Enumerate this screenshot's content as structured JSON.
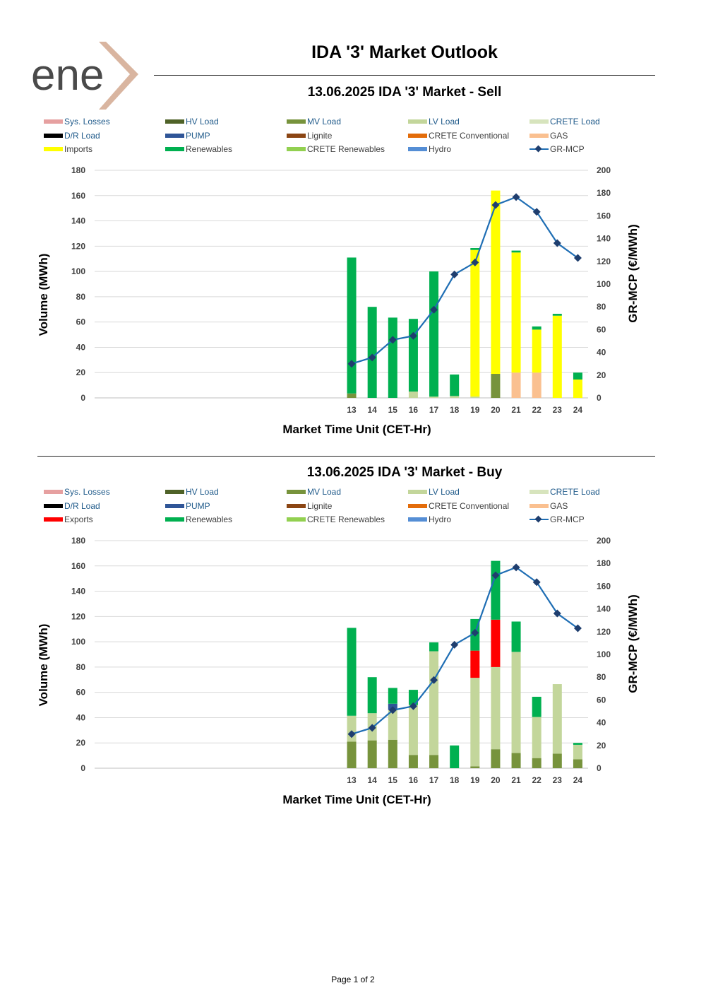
{
  "logo": {
    "text": "ene"
  },
  "header": {
    "title": "IDA '3' Market Outlook"
  },
  "footer": {
    "page": "Page 1 of 2"
  },
  "colors": {
    "sys_losses": "#e6a0a0",
    "hv_load": "#4f6228",
    "mv_load": "#77933c",
    "lv_load": "#c3d69b",
    "crete_load": "#d7e4bd",
    "dr_load": "#000000",
    "pump": "#2f5597",
    "lignite": "#8b4513",
    "crete_conventional": "#e36c0a",
    "gas": "#fac090",
    "imports": "#ffff00",
    "exports": "#ff0000",
    "renewables": "#00b050",
    "crete_renewables": "#92d050",
    "hydro": "#558ed5",
    "gr_mcp_line": "#1f6eb4",
    "gr_mcp_marker": "#1f3e6e"
  },
  "chart_data": [
    {
      "type": "bar",
      "title": "13.06.2025  IDA '3' Market - Sell",
      "xlabel": "Market Time Unit (CET-Hr)",
      "ylabel": "Volume (MWh)",
      "y2label": "GR-MCP (€/MWh)",
      "ylim": [
        0,
        180
      ],
      "y2lim": [
        0,
        200
      ],
      "yticks": [
        "180",
        "160",
        "140",
        "120",
        "100",
        "80",
        "60",
        "40",
        "20",
        "0"
      ],
      "y2ticks": [
        "200",
        "180",
        "160",
        "140",
        "120",
        "100",
        "80",
        "60",
        "40",
        "20",
        "0"
      ],
      "categories": [
        "13",
        "14",
        "15",
        "16",
        "17",
        "18",
        "19",
        "20",
        "21",
        "22",
        "23",
        "24"
      ],
      "stacked": true,
      "legend": [
        "Sys. Losses",
        "HV Load",
        "MV Load",
        "LV Load",
        "CRETE Load",
        "D/R Load",
        "PUMP",
        "Lignite",
        "CRETE Conventional",
        "GAS",
        "Imports",
        "Renewables",
        "CRETE Renewables",
        "Hydro",
        "GR-MCP"
      ],
      "series": [
        {
          "name": "MV Load",
          "key": "mv_load",
          "values": [
            3.5,
            0,
            0,
            0,
            0,
            0,
            0,
            19,
            0,
            0,
            0,
            0
          ]
        },
        {
          "name": "LV Load",
          "key": "lv_load",
          "values": [
            0,
            0,
            0,
            5,
            1,
            1.5,
            1,
            0,
            0,
            0,
            0,
            0
          ]
        },
        {
          "name": "GAS",
          "key": "gas",
          "values": [
            0,
            0,
            0,
            0,
            0,
            0,
            0,
            0,
            20,
            20,
            0,
            0
          ]
        },
        {
          "name": "Imports",
          "key": "imports",
          "values": [
            0,
            0,
            0,
            0,
            0,
            0,
            116,
            145,
            95,
            34,
            65,
            14.5
          ]
        },
        {
          "name": "Renewables",
          "key": "renewables",
          "values": [
            107.5,
            72,
            63.5,
            57.5,
            99,
            17,
            1.5,
            0,
            1.5,
            2.5,
            1.5,
            5.5
          ]
        }
      ],
      "line": {
        "name": "GR-MCP",
        "axis": "y2",
        "values": [
          30,
          35.5,
          51,
          54.5,
          77.5,
          108.5,
          119,
          169.5,
          176.5,
          163.5,
          136,
          123
        ]
      }
    },
    {
      "type": "bar",
      "title": "13.06.2025  IDA '3' Market - Buy",
      "xlabel": "Market Time Unit (CET-Hr)",
      "ylabel": "Volume (MWh)",
      "y2label": "GR-MCP (€/MWh)",
      "ylim": [
        0,
        180
      ],
      "y2lim": [
        0,
        200
      ],
      "yticks": [
        "180",
        "160",
        "140",
        "120",
        "100",
        "80",
        "60",
        "40",
        "20",
        "0"
      ],
      "y2ticks": [
        "200",
        "180",
        "160",
        "140",
        "120",
        "100",
        "80",
        "60",
        "40",
        "20",
        "0"
      ],
      "categories": [
        "13",
        "14",
        "15",
        "16",
        "17",
        "18",
        "19",
        "20",
        "21",
        "22",
        "23",
        "24"
      ],
      "stacked": true,
      "legend": [
        "Sys. Losses",
        "HV Load",
        "MV Load",
        "LV Load",
        "CRETE Load",
        "D/R Load",
        "PUMP",
        "Lignite",
        "CRETE Conventional",
        "GAS",
        "Exports",
        "Renewables",
        "CRETE Renewables",
        "Hydro",
        "GR-MCP"
      ],
      "series": [
        {
          "name": "MV Load",
          "key": "mv_load",
          "values": [
            21,
            22,
            22.5,
            10.5,
            10.5,
            0,
            1.5,
            15,
            12,
            8,
            11.5,
            7
          ]
        },
        {
          "name": "LV Load",
          "key": "lv_load",
          "values": [
            20.5,
            21.5,
            23.5,
            39.5,
            82,
            0,
            70,
            65,
            80,
            32.5,
            55,
            11.5
          ]
        },
        {
          "name": "PUMP",
          "key": "pump",
          "values": [
            0,
            0,
            5,
            0,
            0,
            0,
            0,
            0,
            0,
            0,
            0,
            0
          ]
        },
        {
          "name": "Exports",
          "key": "exports",
          "values": [
            0,
            0,
            0,
            0,
            0,
            0,
            21.5,
            37.5,
            0,
            0,
            0,
            0
          ]
        },
        {
          "name": "Renewables",
          "key": "renewables",
          "values": [
            69.5,
            28.5,
            12.5,
            12,
            7,
            18,
            25,
            46.5,
            24,
            16,
            0,
            1.5
          ]
        }
      ],
      "line": {
        "name": "GR-MCP",
        "axis": "y2",
        "values": [
          30,
          35.5,
          51,
          54.5,
          77.5,
          108.5,
          119,
          169.5,
          176.5,
          163.5,
          136,
          123
        ]
      }
    }
  ]
}
